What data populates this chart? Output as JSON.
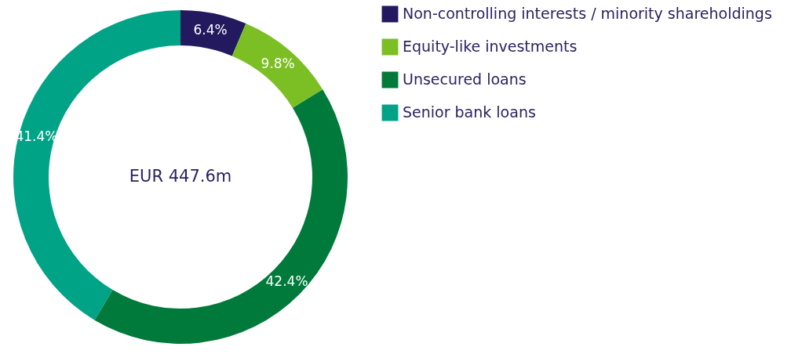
{
  "chart_data": {
    "type": "donut",
    "categories": [
      "Non-controlling interests / minority shareholdings",
      "Equity-like investments",
      "Unsecured loans",
      "Senior bank loans"
    ],
    "values": [
      6.4,
      9.8,
      42.4,
      41.4
    ],
    "colors": [
      "#22195e",
      "#7bbf24",
      "#007a3a",
      "#00a386"
    ],
    "value_labels": [
      "6.4%",
      "9.8%",
      "42.4%",
      "41.4%"
    ],
    "annotations": [
      "EUR 447.6m"
    ],
    "legend": "right"
  }
}
